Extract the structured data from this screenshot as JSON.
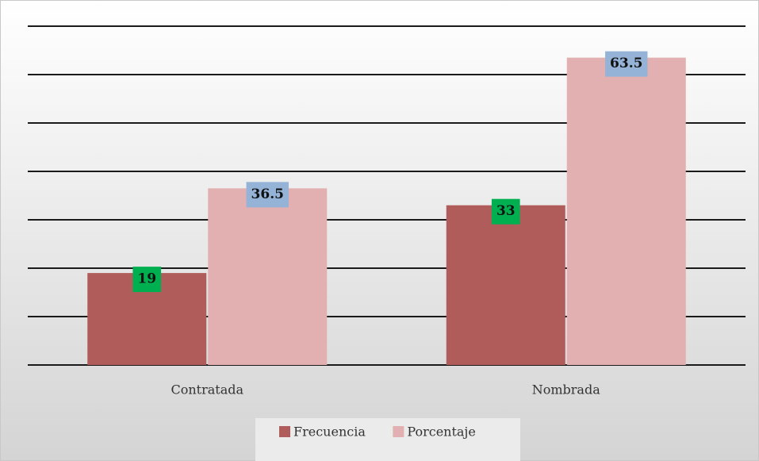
{
  "chart_data": {
    "type": "bar",
    "categories": [
      "Contratada",
      "Nombrada"
    ],
    "series": [
      {
        "name": "Frecuencia",
        "color": "#b05c5a",
        "label_color": "#00b050",
        "values": [
          19,
          33
        ]
      },
      {
        "name": "Porcentaje",
        "color": "#e2b0b0",
        "label_color": "#95b3d7",
        "values": [
          36.5,
          63.5
        ]
      }
    ],
    "ylim": [
      0,
      70
    ],
    "yticks": [
      0,
      10,
      20,
      30,
      40,
      50,
      60,
      70
    ],
    "grid": true,
    "legend": "bottom"
  }
}
